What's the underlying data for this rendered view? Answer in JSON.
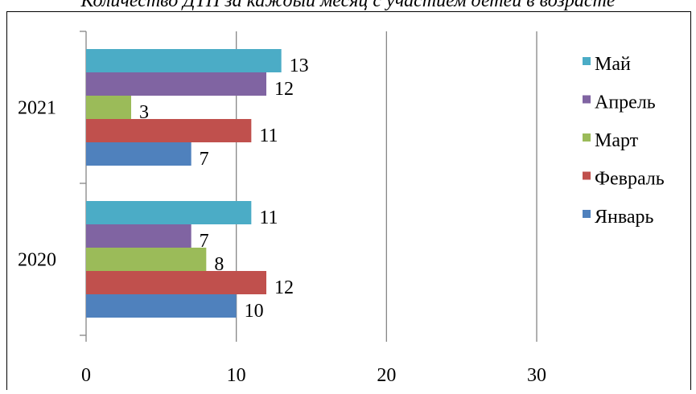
{
  "title": "Количество ДТП за каждый месяц с участием детей в возрасте",
  "chart_data": {
    "type": "bar",
    "orientation": "horizontal",
    "categories": [
      "2020",
      "2021"
    ],
    "series": [
      {
        "name": "Январь",
        "color": "#4F81BD",
        "values": [
          10,
          7
        ]
      },
      {
        "name": "Февраль",
        "color": "#C0504D",
        "values": [
          12,
          11
        ]
      },
      {
        "name": "Март",
        "color": "#9BBB59",
        "values": [
          8,
          3
        ]
      },
      {
        "name": "Апрель",
        "color": "#8064A2",
        "values": [
          7,
          12
        ]
      },
      {
        "name": "Май",
        "color": "#4BACC6",
        "values": [
          11,
          13
        ]
      }
    ],
    "xlim": [
      0,
      30
    ],
    "xticks": [
      "0",
      "10",
      "20",
      "30"
    ],
    "grid": "vertical",
    "legend": "right",
    "legend_order": [
      "Май",
      "Апрель",
      "Март",
      "Февраль",
      "Январь"
    ],
    "data_labels": true
  }
}
